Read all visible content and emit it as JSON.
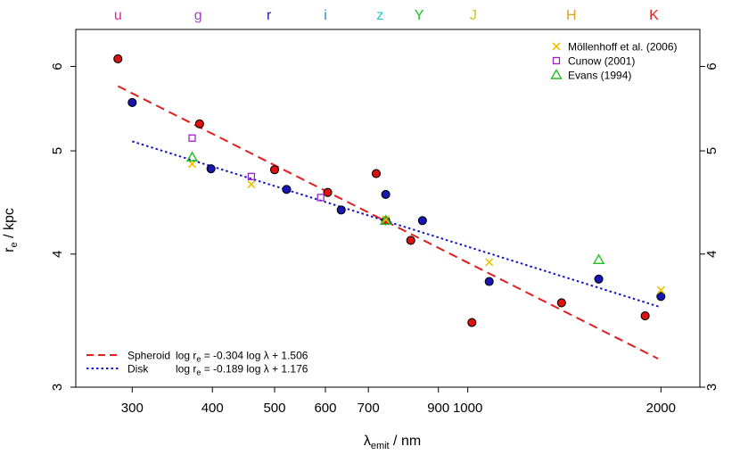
{
  "chart_data": {
    "type": "scatter",
    "x_scale": "log",
    "y_scale": "log",
    "xlim": [
      245,
      2300
    ],
    "ylim": [
      3.0,
      6.5
    ],
    "xlabel_main": "λ",
    "xlabel_sub": "emit",
    "xlabel_unit": " / nm",
    "ylabel_main": "r",
    "ylabel_sub": "e",
    "ylabel_unit": " / kpc",
    "x_ticks": [
      300,
      400,
      500,
      600,
      700,
      900,
      1000,
      2000
    ],
    "x_tick_labels": [
      "300",
      "400",
      "500",
      "600",
      "700",
      "900",
      "1000",
      "2000"
    ],
    "y_ticks": [
      3,
      4,
      5,
      6
    ],
    "y_tick_labels": [
      "3",
      "4",
      "5",
      "6"
    ],
    "band_labels": [
      {
        "label": "u",
        "wavelength": 285,
        "color": "#e020a0"
      },
      {
        "label": "g",
        "wavelength": 380,
        "color": "#a040c0"
      },
      {
        "label": "r",
        "wavelength": 490,
        "color": "#2020b0"
      },
      {
        "label": "i",
        "wavelength": 600,
        "color": "#1890d0"
      },
      {
        "label": "z",
        "wavelength": 730,
        "color": "#20c8c8"
      },
      {
        "label": "Y",
        "wavelength": 840,
        "color": "#20c020"
      },
      {
        "label": "J",
        "wavelength": 1020,
        "color": "#c8c820"
      },
      {
        "label": "H",
        "wavelength": 1450,
        "color": "#e0a020"
      },
      {
        "label": "K",
        "wavelength": 1950,
        "color": "#e02020"
      }
    ],
    "series": [
      {
        "name": "Spheroid",
        "kind": "points",
        "marker": "circle",
        "fill": "#dd1111",
        "x": [
          285,
          382,
          500,
          605,
          720,
          745,
          815,
          1015,
          1400,
          1890
        ],
        "y": [
          6.1,
          5.3,
          4.8,
          4.57,
          4.76,
          4.3,
          4.12,
          3.45,
          3.6,
          3.5
        ]
      },
      {
        "name": "Disk",
        "kind": "points",
        "marker": "circle",
        "fill": "#1515b8",
        "x": [
          300,
          398,
          522,
          635,
          745,
          850,
          1080,
          1600,
          2000
        ],
        "y": [
          5.55,
          4.81,
          4.6,
          4.4,
          4.55,
          4.3,
          3.77,
          3.79,
          3.65
        ]
      },
      {
        "name": "Möllenhoff et al. (2006)",
        "kind": "points",
        "marker": "x",
        "color": "#f0c000",
        "x": [
          372,
          460,
          745,
          1080,
          2000
        ],
        "y": [
          4.86,
          4.65,
          4.31,
          3.93,
          3.7
        ]
      },
      {
        "name": "Cunow (2001)",
        "kind": "points",
        "marker": "square",
        "color": "#a020c8",
        "x": [
          372,
          460,
          590
        ],
        "y": [
          5.14,
          4.73,
          4.52
        ]
      },
      {
        "name": "Evans (1994)",
        "kind": "points",
        "marker": "triangle",
        "color": "#20c020",
        "x": [
          372,
          745,
          1600
        ],
        "y": [
          4.93,
          4.3,
          3.95
        ]
      },
      {
        "name": "Spheroid fit",
        "kind": "fit",
        "color": "#e02020",
        "dash": "long",
        "slope": -0.304,
        "intercept": 1.506,
        "x_range": [
          285,
          1980
        ]
      },
      {
        "name": "Disk fit",
        "kind": "fit",
        "color": "#1515c8",
        "dash": "dot",
        "slope": -0.189,
        "intercept": 1.176,
        "x_range": [
          300,
          2000
        ]
      }
    ],
    "legend_top_right": [
      "Möllenhoff et al. (2006)",
      "Cunow (2001)",
      "Evans (1994)"
    ],
    "legend_bottom_left": [
      {
        "name": "Spheroid",
        "formula_pre": "log r",
        "formula_sub": "e",
        "formula_post": " = -0.304 log λ + 1.506"
      },
      {
        "name": "Disk",
        "formula_pre": "log r",
        "formula_sub": "e",
        "formula_post": " = -0.189 log λ + 1.176"
      }
    ]
  }
}
